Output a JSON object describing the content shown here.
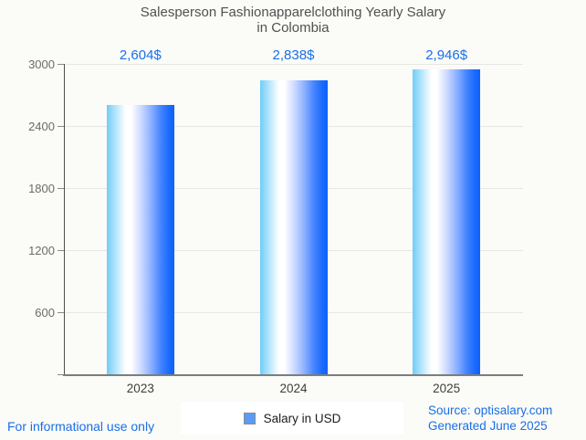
{
  "title": {
    "line1": "Salesperson Fashionapparelclothing Yearly Salary",
    "line2": "in Colombia"
  },
  "chart_data": {
    "type": "bar",
    "title": "Salesperson Fashionapparelclothing Yearly Salary in Colombia",
    "categories": [
      "2023",
      "2024",
      "2025"
    ],
    "series": [
      {
        "name": "Salary in USD",
        "values": [
          2604,
          2838,
          2946
        ]
      }
    ],
    "value_labels": [
      "2,604$",
      "2,838$",
      "2,946$"
    ],
    "xlabel": "",
    "ylabel": "",
    "ylim": [
      0,
      3000
    ],
    "yticks": [
      600,
      1200,
      1800,
      2400,
      3000
    ],
    "grid": true,
    "legend_position": "bottom-center"
  },
  "legend": {
    "label": "Salary in USD",
    "marker_color": "#5b9bf7"
  },
  "footer": {
    "left": "For informational use only",
    "source": "Source: optisalary.com",
    "generated": "Generated June 2025"
  },
  "colors": {
    "background": "#fbfbf7",
    "bar_gradient_left": "#6fcdf8",
    "bar_gradient_mid": "#ffffff",
    "bar_gradient_right": "#0d61fb",
    "annotation_blue": "#1a6fe8",
    "footer_blue": "#1a6fe8",
    "title_gray": "#515151",
    "gridline": "#e6e6e6"
  }
}
